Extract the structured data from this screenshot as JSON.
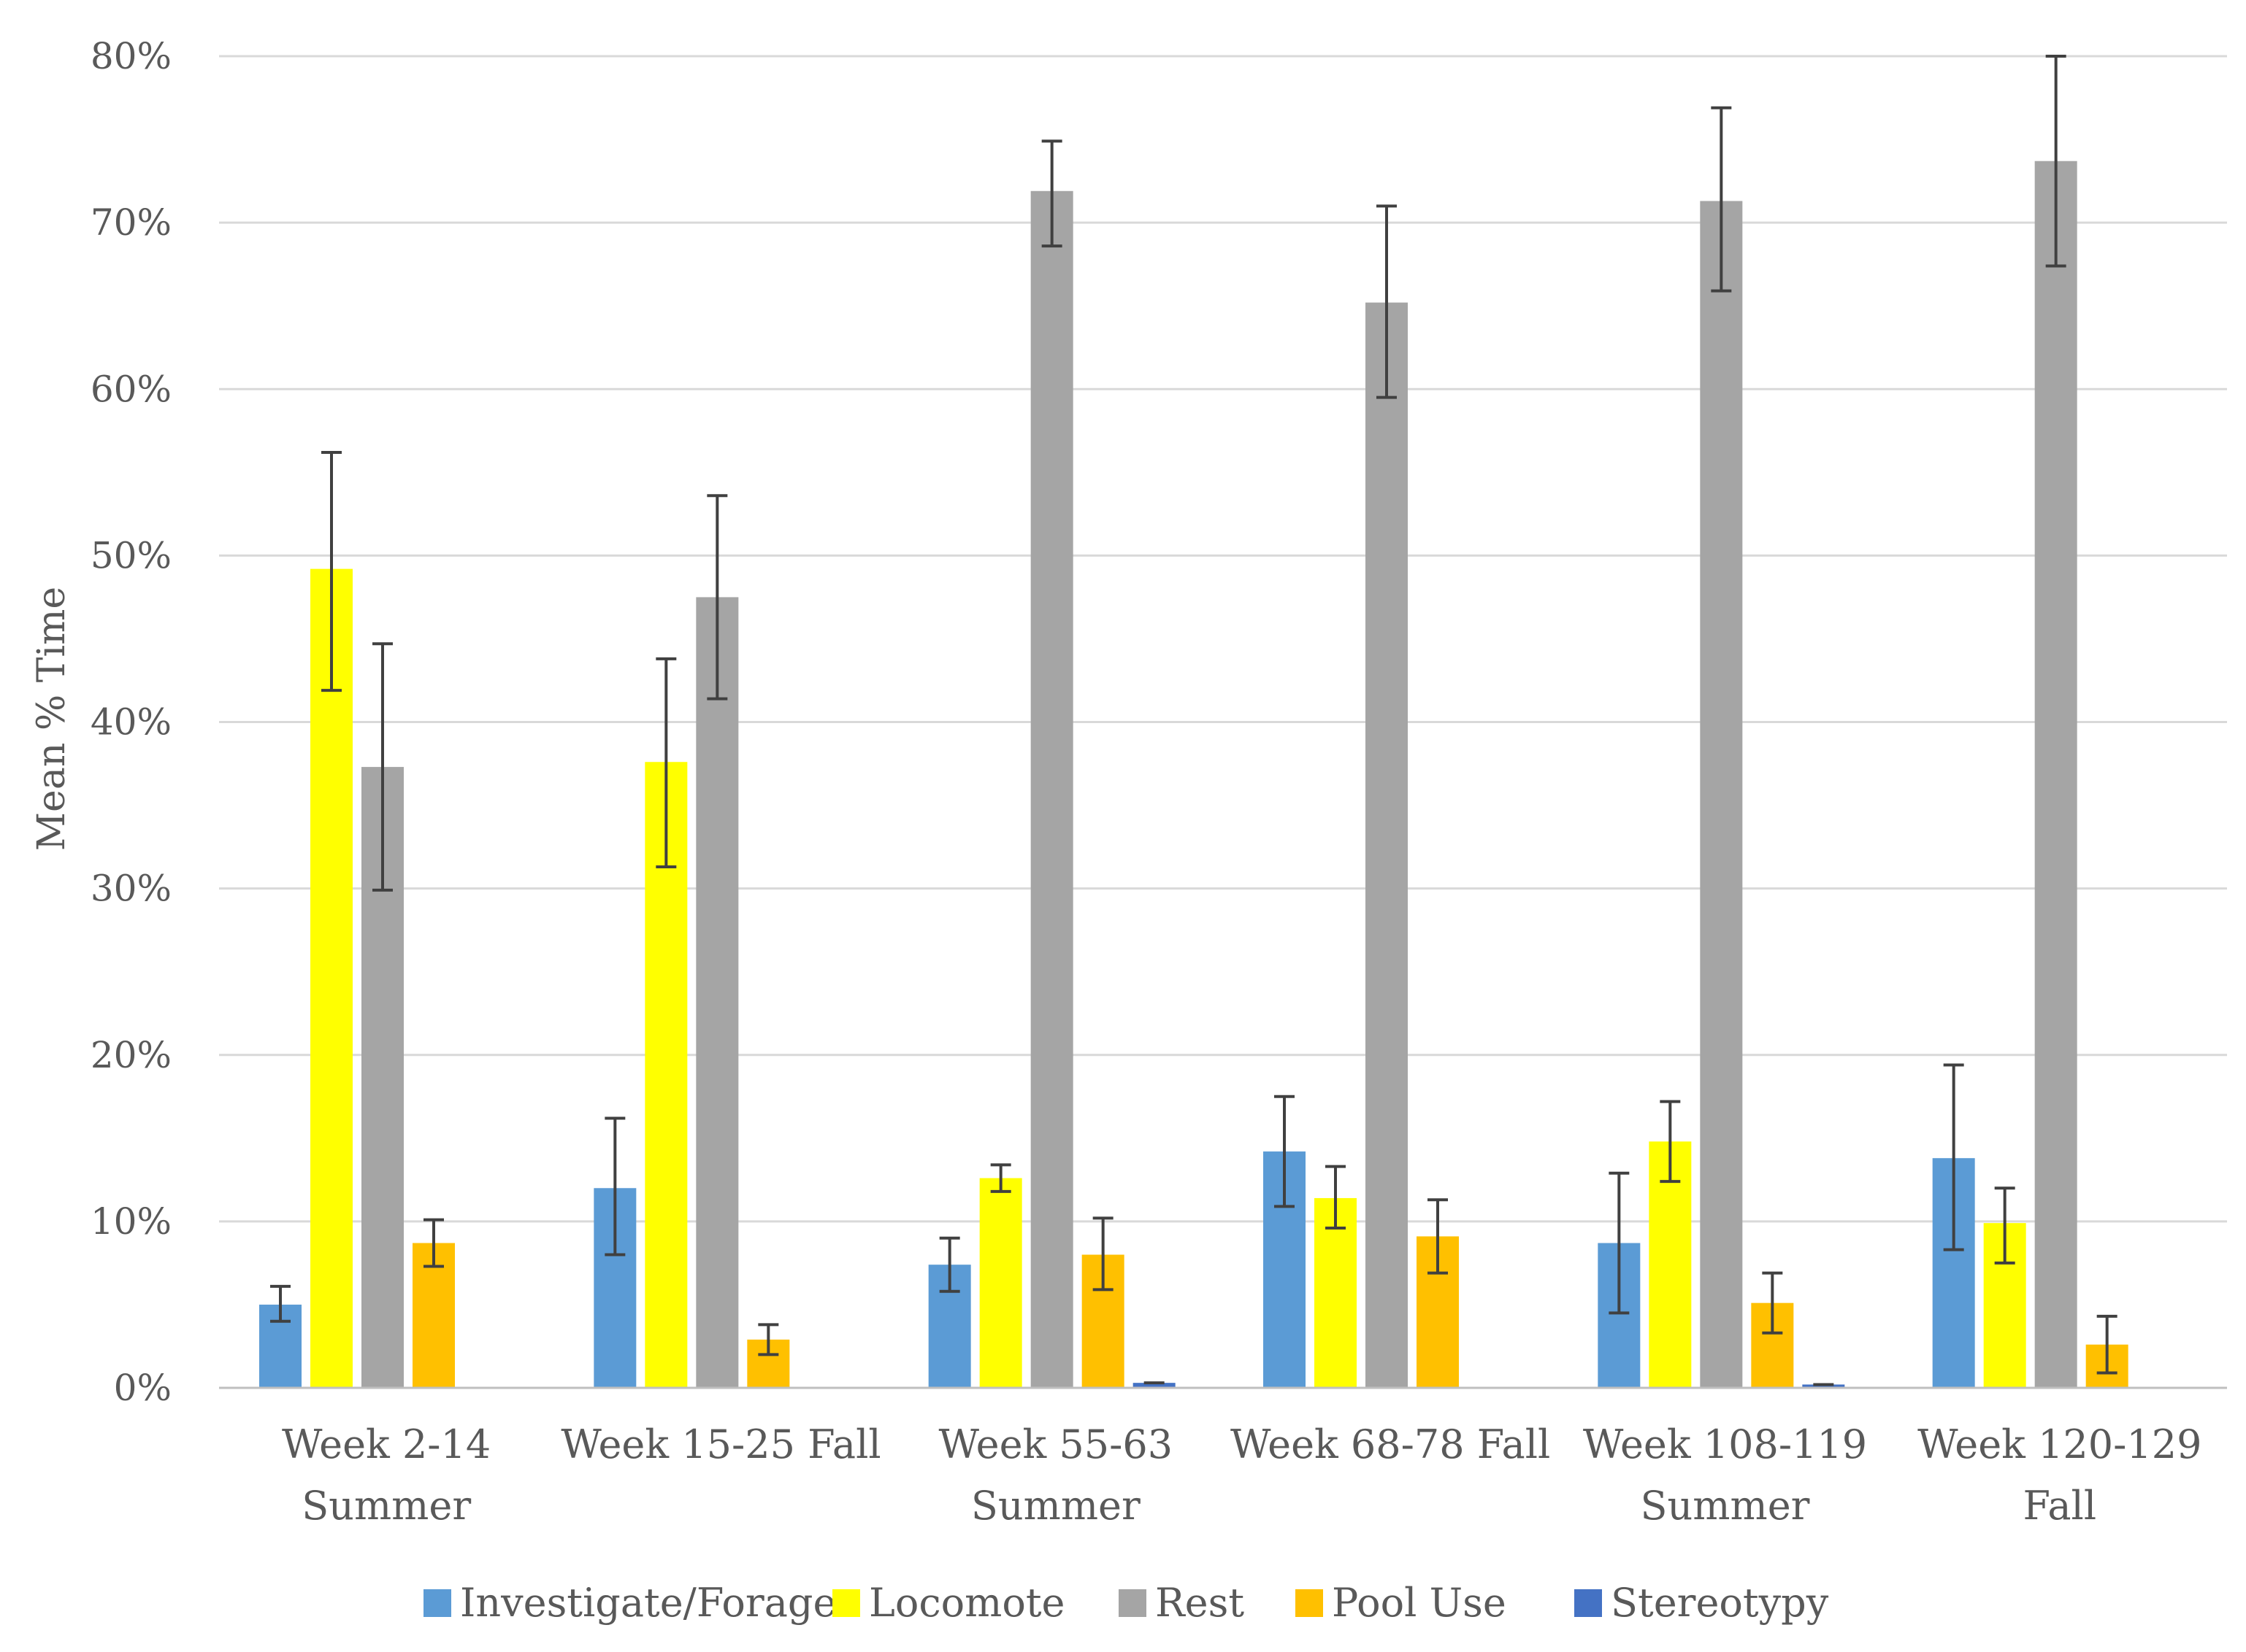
{
  "chart_data": {
    "type": "bar",
    "title": "",
    "xlabel": "",
    "ylabel": "Mean % Time",
    "ylim": [
      0,
      80
    ],
    "yticks": [
      "0%",
      "10%",
      "20%",
      "30%",
      "40%",
      "50%",
      "60%",
      "70%",
      "80%"
    ],
    "ytick_values": [
      0,
      10,
      20,
      30,
      40,
      50,
      60,
      70,
      80
    ],
    "grid": true,
    "legend_position": "bottom",
    "categories": [
      [
        "Week 2-14",
        "Summer"
      ],
      [
        "Week 15-25 Fall"
      ],
      [
        "Week 55-63",
        "Summer"
      ],
      [
        "Week 68-78 Fall"
      ],
      [
        "Week 108-119",
        "Summer"
      ],
      [
        "Week 120-129",
        "Fall"
      ]
    ],
    "series": [
      {
        "name": "Investigate/Forage",
        "color": "#5b9bd5",
        "values": [
          5.0,
          12.0,
          7.4,
          14.2,
          8.7,
          13.8
        ],
        "err_low": [
          4.0,
          8.0,
          5.8,
          10.9,
          4.5,
          8.3
        ],
        "err_high": [
          6.1,
          16.2,
          9.0,
          17.5,
          12.9,
          19.4
        ]
      },
      {
        "name": "Locomote",
        "color": "#ffff00",
        "values": [
          49.2,
          37.6,
          12.6,
          11.4,
          14.8,
          9.9
        ],
        "err_low": [
          41.9,
          31.3,
          11.8,
          9.6,
          12.4,
          7.5
        ],
        "err_high": [
          56.2,
          43.8,
          13.4,
          13.3,
          17.2,
          12.0
        ]
      },
      {
        "name": "Rest",
        "color": "#a5a5a5",
        "values": [
          37.3,
          47.5,
          71.9,
          65.2,
          71.3,
          73.7
        ],
        "err_low": [
          29.9,
          41.4,
          68.6,
          59.5,
          65.9,
          67.4
        ],
        "err_high": [
          44.7,
          53.6,
          74.9,
          71.0,
          76.9,
          80.0
        ]
      },
      {
        "name": "Pool Use",
        "color": "#ffc000",
        "values": [
          8.7,
          2.9,
          8.0,
          9.1,
          5.1,
          2.6
        ],
        "err_low": [
          7.3,
          2.0,
          5.9,
          6.9,
          3.3,
          0.9
        ],
        "err_high": [
          10.1,
          3.8,
          10.2,
          11.3,
          6.9,
          4.3
        ]
      },
      {
        "name": "Stereotypy",
        "color": "#4472c4",
        "values": [
          0,
          0,
          0.3,
          0,
          0.2,
          0
        ],
        "err_low": [
          0,
          0,
          0.3,
          0,
          0.2,
          0
        ],
        "err_high": [
          0,
          0,
          0.3,
          0,
          0.2,
          0
        ]
      }
    ]
  }
}
